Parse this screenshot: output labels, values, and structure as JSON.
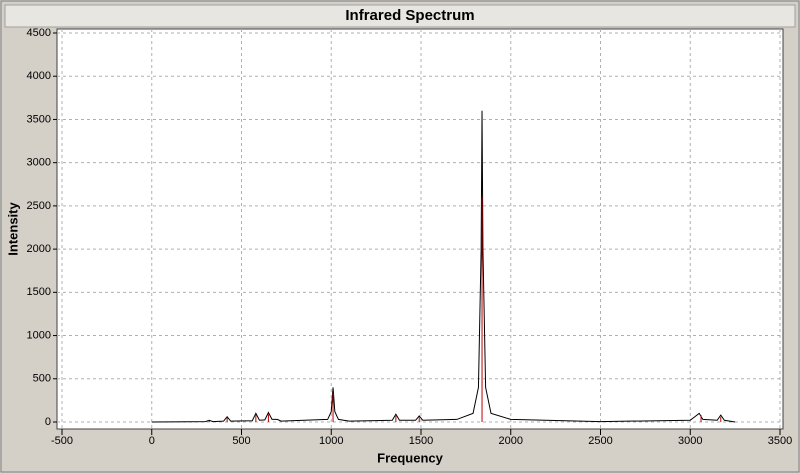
{
  "chart_data": {
    "type": "line",
    "title": "Infrared Spectrum",
    "x_label": "Frequency",
    "y_label": "Intensity",
    "xlim": [
      -500,
      3500
    ],
    "xticks": [
      -500,
      0,
      500,
      1000,
      1500,
      2000,
      2500,
      3000,
      3500
    ],
    "ylim": [
      0,
      4500
    ],
    "yticks": [
      0,
      500,
      1000,
      1500,
      2000,
      2500,
      3000,
      3500,
      4000,
      4500
    ],
    "grid": true,
    "series": [
      {
        "color": "#000000",
        "style": "line",
        "x": [
          0,
          300,
          320,
          340,
          400,
          420,
          440,
          560,
          580,
          600,
          630,
          650,
          670,
          700,
          720,
          980,
          1000,
          1010,
          1020,
          1040,
          1100,
          1340,
          1360,
          1380,
          1470,
          1490,
          1510,
          1700,
          1790,
          1820,
          1835,
          1840,
          1845,
          1860,
          1890,
          2000,
          2500,
          3000,
          3050,
          3070,
          3150,
          3170,
          3190,
          3250
        ],
        "values": [
          0,
          5,
          20,
          5,
          10,
          60,
          10,
          15,
          100,
          20,
          25,
          110,
          30,
          30,
          10,
          30,
          120,
          400,
          120,
          30,
          10,
          20,
          90,
          20,
          20,
          70,
          20,
          30,
          100,
          400,
          2000,
          3600,
          2000,
          400,
          100,
          30,
          5,
          20,
          100,
          30,
          20,
          80,
          20,
          0
        ]
      },
      {
        "color": "#c00000",
        "style": "stick",
        "x": [
          320,
          420,
          580,
          650,
          1010,
          1360,
          1490,
          1840,
          3060,
          3170
        ],
        "values": [
          15,
          50,
          80,
          90,
          330,
          70,
          55,
          2600,
          80,
          60
        ]
      }
    ]
  }
}
